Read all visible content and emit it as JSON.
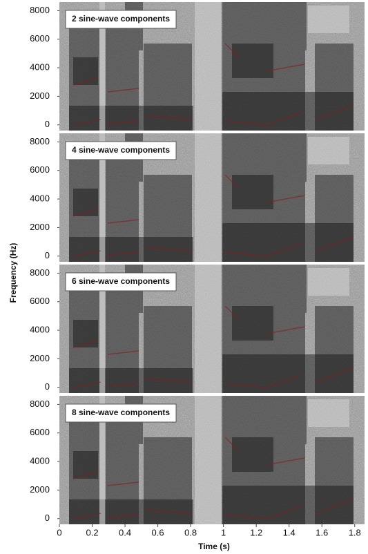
{
  "chart_data": {
    "type": "spectrogram",
    "panels": [
      "2 sine-wave components",
      "4 sine-wave components",
      "6 sine-wave components",
      "8 sine-wave components"
    ],
    "xlabel": "Time (s)",
    "ylabel": "Frequency (Hz)",
    "xlim": [
      0,
      1.86
    ],
    "xticks": [
      0,
      0.2,
      0.4,
      0.6,
      0.8,
      1,
      1.2,
      1.4,
      1.6,
      1.8
    ],
    "ylim": [
      -400,
      8600
    ],
    "yticks": [
      0,
      2000,
      4000,
      6000,
      8000
    ],
    "title_color": "#a01010"
  }
}
